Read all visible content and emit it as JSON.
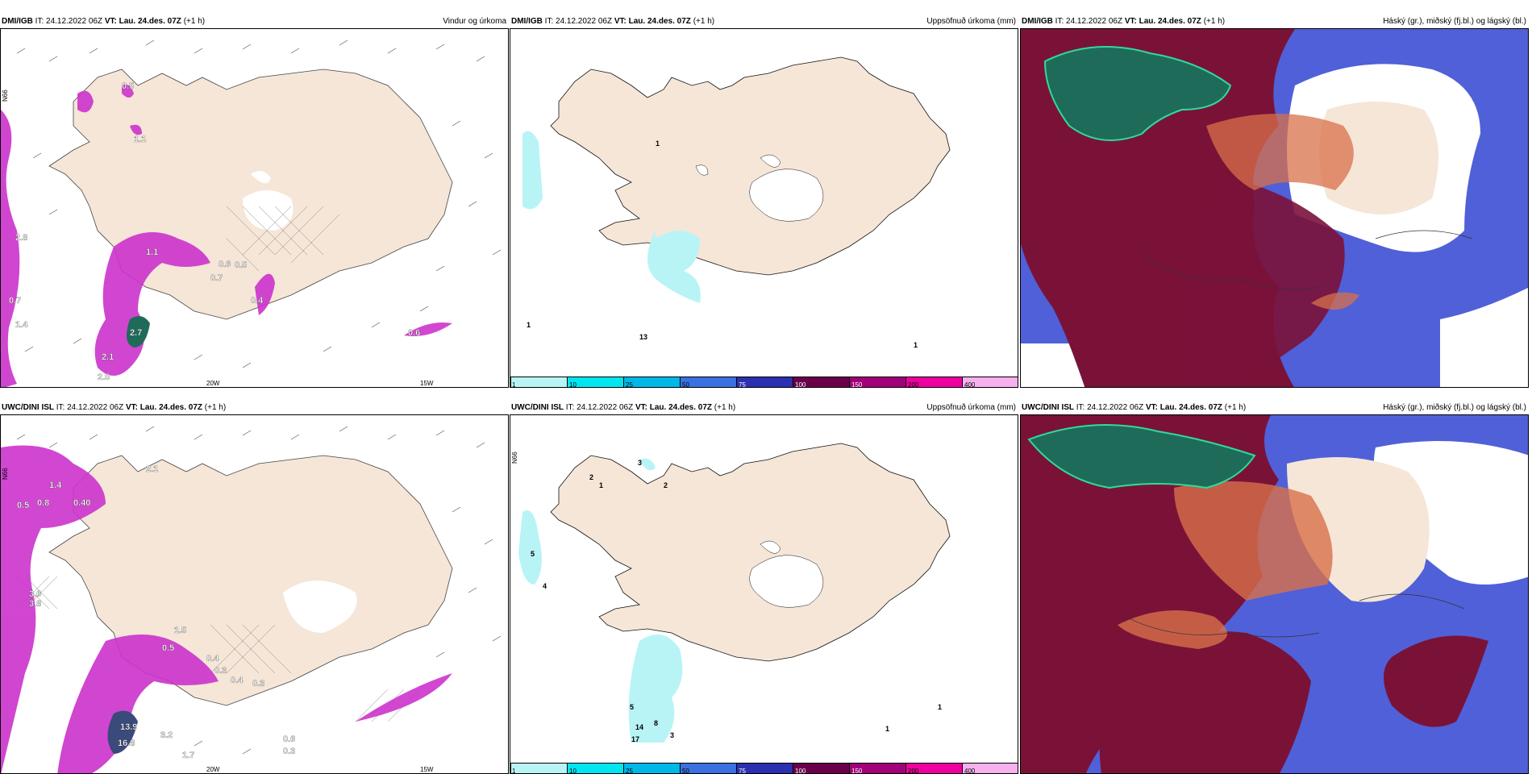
{
  "panels": [
    {
      "model": "DMI/IGB",
      "it": "IT: 24.12.2022 06Z",
      "vt_label": "VT:",
      "vt": "Lau. 24.des. 07Z",
      "lead": "(+1 h)",
      "product": "Vindur og úrkoma"
    },
    {
      "model": "DMI/IGB",
      "it": "IT: 24.12.2022 06Z",
      "vt_label": "VT:",
      "vt": "Lau. 24.des. 07Z",
      "lead": "(+1 h)",
      "product": "Uppsöfnuð úrkoma (mm)"
    },
    {
      "model": "DMI/IGB",
      "it": "IT: 24.12.2022 06Z",
      "vt_label": "VT:",
      "vt": "Lau. 24.des. 07Z",
      "lead": "(+1 h)",
      "product": "Háský (gr.), miðský (fj.bl.) og lágský (bl.)"
    },
    {
      "model": "UWC/DINI ISL",
      "it": "IT: 24.12.2022 06Z",
      "vt_label": "VT:",
      "vt": "Lau. 24.des. 07Z",
      "lead": "(+1 h)",
      "product": ""
    },
    {
      "model": "UWC/DINI ISL",
      "it": "IT: 24.12.2022 06Z",
      "vt_label": "VT:",
      "vt": "Lau. 24.des. 07Z",
      "lead": "(+1 h)",
      "product": "Uppsöfnuð úrkoma (mm)"
    },
    {
      "model": "UWC/DINI ISL",
      "it": "IT: 24.12.2022 06Z",
      "vt_label": "VT:",
      "vt": "Lau. 24.des. 07Z",
      "lead": "(+1 h)",
      "product": "Háský (gr.), miðský (fj.bl.) og lágský (bl.)"
    }
  ],
  "axis_labels": {
    "lon20": "20W",
    "lon15": "15W",
    "lat65": "N65",
    "lat66": "N66"
  },
  "colorbar": {
    "ticks": [
      "1",
      "10",
      "25",
      "50",
      "75",
      "100",
      "150",
      "200",
      "400"
    ],
    "colors": [
      "#b8f4f6",
      "#00e6f0",
      "#00b8e8",
      "#3a70e0",
      "#2a30b0",
      "#6a004a",
      "#a2007a",
      "#ee00a0",
      "#f6b0ee"
    ]
  },
  "labels_top_left": [
    "0.5",
    "2.8",
    "1.4",
    "2.7",
    "2.1",
    "0.6",
    "0.7",
    "0.5",
    "0.7",
    "1.1",
    "0.6",
    "2.5",
    "0.4",
    "1.1"
  ],
  "labels_bottom_left": [
    "0.5",
    "0.8",
    "1.4",
    "0.40",
    "3.6",
    "3.8",
    "2.1",
    "1.5",
    "0.5",
    "0.4",
    "0.3",
    "0.4",
    "13.9",
    "16.8",
    "3.2",
    "1.7",
    "0.3",
    "0.6",
    "0.3"
  ],
  "labels_top_mid": [
    "1",
    "1",
    "13",
    "1"
  ],
  "labels_bottom_mid": [
    "2",
    "1",
    "3",
    "2",
    "5",
    "4",
    "5",
    "14",
    "8",
    "17",
    "3",
    "1",
    "1"
  ],
  "colors": {
    "land": "#f5e6d8",
    "magenta": "#cc33cc",
    "darkred": "#7a1238",
    "teal": "#1f6b5a",
    "blue": "#5060d8",
    "orange": "#d8704a"
  }
}
